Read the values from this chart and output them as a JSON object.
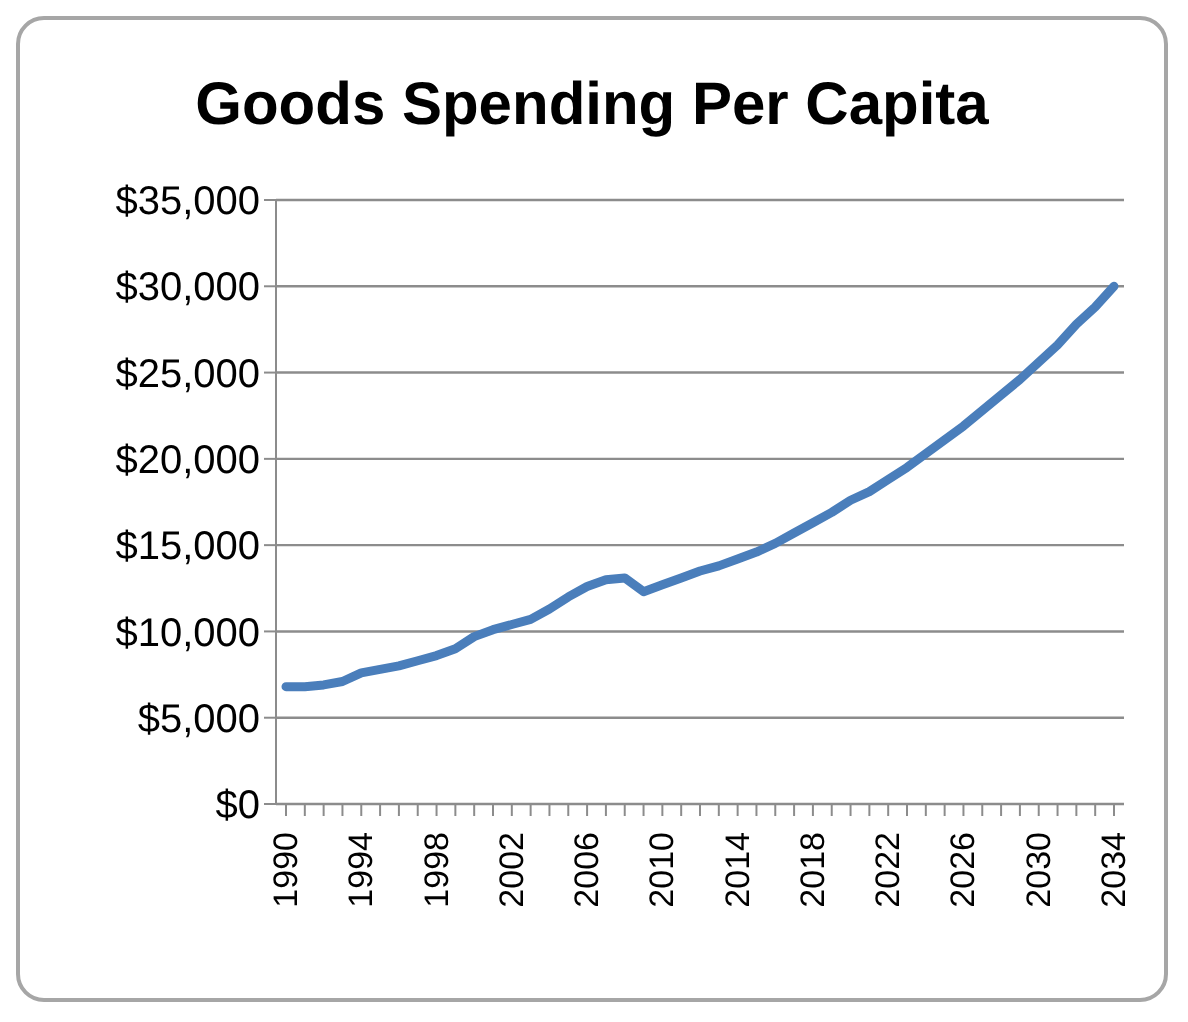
{
  "chart_data": {
    "type": "line",
    "title": "Goods Spending Per Capita",
    "categories": [
      "1990",
      null,
      null,
      null,
      "1994",
      null,
      null,
      null,
      "1998",
      null,
      null,
      null,
      "2002",
      null,
      null,
      null,
      "2006",
      null,
      null,
      null,
      "2010",
      null,
      null,
      null,
      "2014",
      null,
      null,
      null,
      "2018",
      null,
      null,
      null,
      "2022",
      null,
      null,
      null,
      "2026",
      null,
      null,
      null,
      "2030",
      null,
      null,
      null,
      "2034"
    ],
    "series": [
      {
        "color": "#4a7ebb",
        "values": [
          6800,
          6800,
          6900,
          7100,
          7600,
          7800,
          8000,
          8300,
          8600,
          9000,
          9700,
          10100,
          10400,
          10700,
          11300,
          12000,
          12600,
          13000,
          13100,
          12300,
          12700,
          13100,
          13500,
          13800,
          14200,
          14600,
          15100,
          15700,
          16300,
          16900,
          17600,
          18100,
          18800,
          19500,
          20300,
          21100,
          21900,
          22800,
          23700,
          24600,
          25600,
          26600,
          27800,
          28800,
          30000
        ]
      }
    ],
    "ylim": [
      0,
      35000
    ],
    "yticks": [
      {
        "value": 0,
        "label": "$0"
      },
      {
        "value": 5000,
        "label": "$5,000"
      },
      {
        "value": 10000,
        "label": "$10,000"
      },
      {
        "value": 15000,
        "label": "$15,000"
      },
      {
        "value": 20000,
        "label": "$20,000"
      },
      {
        "value": 25000,
        "label": "$25,000"
      },
      {
        "value": 30000,
        "label": "$30,000"
      },
      {
        "value": 35000,
        "label": "$35,000"
      }
    ],
    "grid": "y",
    "marker": "none",
    "line_style": "solid"
  }
}
